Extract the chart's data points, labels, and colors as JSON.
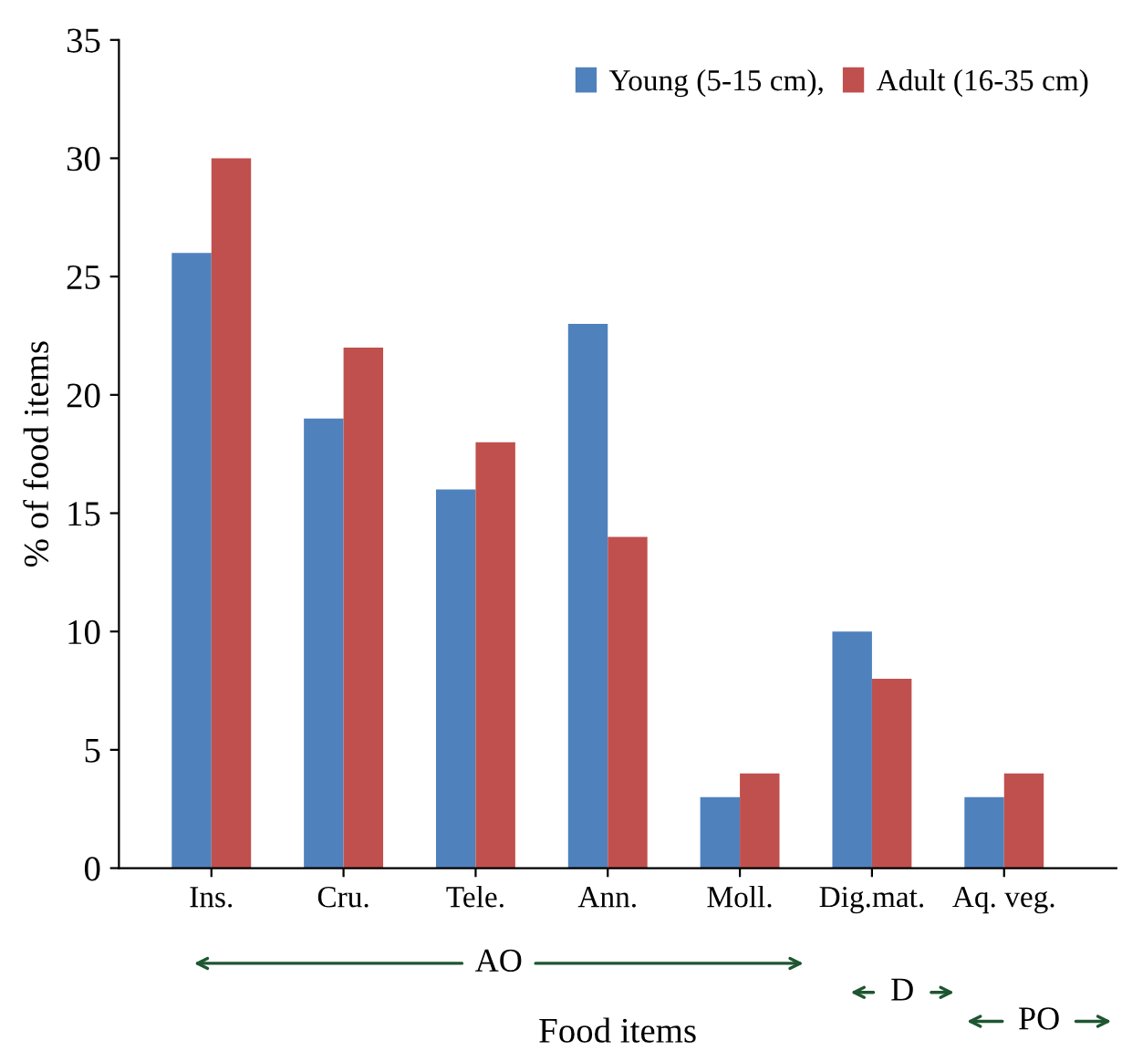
{
  "chart_data": {
    "type": "bar",
    "xlabel": "Food items",
    "ylabel": "% of food items",
    "categories": [
      "Ins.",
      "Cru.",
      "Tele.",
      "Ann.",
      "Moll.",
      "Dig.mat.",
      "Aq. veg."
    ],
    "series": [
      {
        "name": "Young (5-15 cm),",
        "color": "#4f81bd",
        "values": [
          26,
          19,
          16,
          23,
          3,
          10,
          3
        ]
      },
      {
        "name": "Adult (16-35 cm)",
        "color": "#c0504d",
        "values": [
          30,
          22,
          18,
          14,
          4,
          8,
          4
        ]
      }
    ],
    "ylim": [
      0,
      35
    ],
    "yticks": [
      0,
      5,
      10,
      15,
      20,
      25,
      30,
      35
    ],
    "grid": false,
    "legend": "top right",
    "annotations": [
      "AO",
      "D",
      "PO"
    ]
  }
}
